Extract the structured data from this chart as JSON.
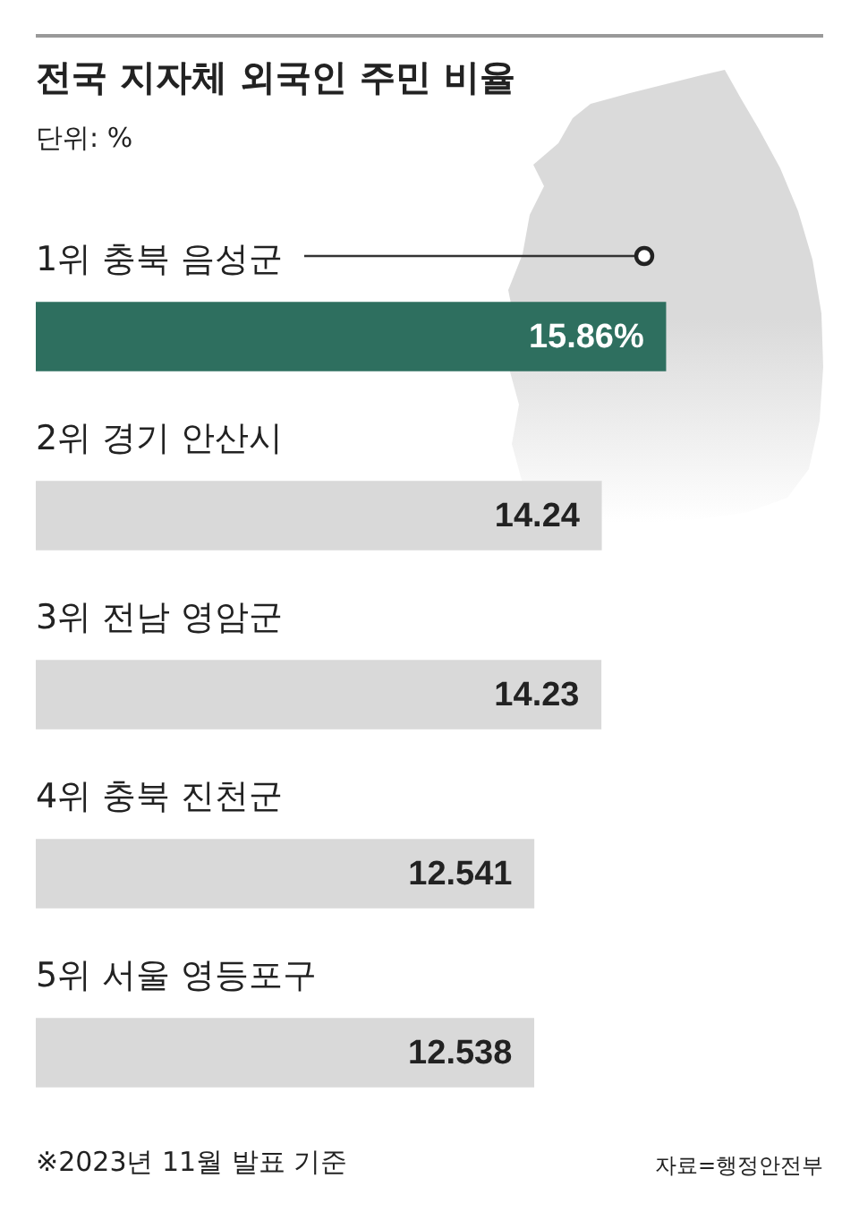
{
  "chart_data": {
    "type": "bar",
    "orientation": "horizontal",
    "title": "전국 지자체 외국인 주민 비율",
    "subtitle": "단위: %",
    "categories": [
      "1위 충북 음성군",
      "2위 경기 안산시",
      "3위 전남 영암군",
      "4위 충북 진천군",
      "5위 서울 영등포구"
    ],
    "values": [
      15.86,
      14.24,
      14.23,
      12.541,
      12.538
    ],
    "value_labels": [
      "15.86%",
      "14.24",
      "14.23",
      "12.541",
      "12.538"
    ],
    "colors": [
      "#2e6f5f",
      "#d9d9d9",
      "#d9d9d9",
      "#d9d9d9",
      "#d9d9d9"
    ],
    "tick_labels": "y",
    "annotations": [
      "※2023년 11월 발표 기준",
      "자료=행정안전부"
    ]
  }
}
